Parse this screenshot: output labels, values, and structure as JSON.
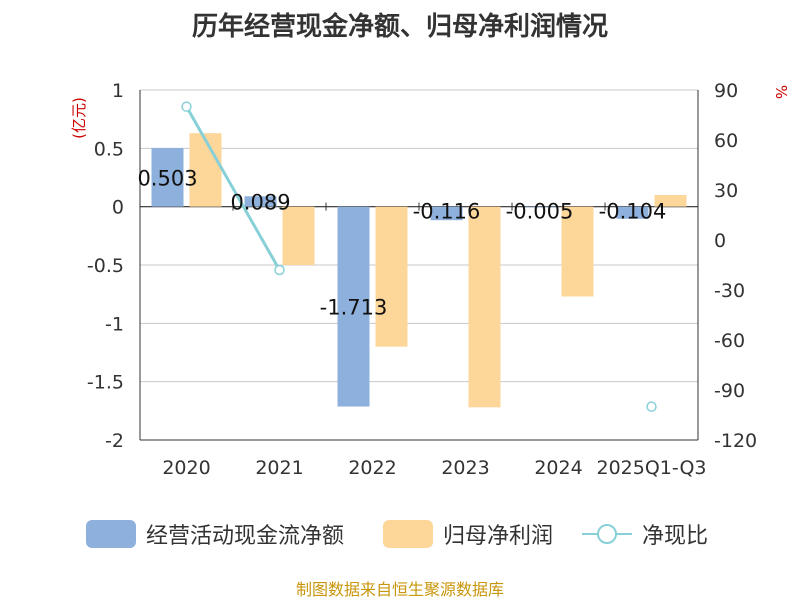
{
  "chart_data": {
    "type": "bar",
    "title": "历年经营现金净额、归母净利润情况",
    "categories": [
      "2020",
      "2021",
      "2022",
      "2023",
      "2024",
      "2025Q1-Q3"
    ],
    "series": [
      {
        "name": "经营活动现金流净额",
        "axis": "left",
        "type": "bar",
        "color": "#8eb0dc",
        "values": [
          0.503,
          0.089,
          -1.713,
          -0.116,
          -0.005,
          -0.104
        ]
      },
      {
        "name": "归母净利润",
        "axis": "left",
        "type": "bar",
        "color": "#fdd69a",
        "values": [
          0.63,
          -0.5,
          -1.2,
          -1.72,
          -0.77,
          0.1
        ]
      },
      {
        "name": "净现比",
        "axis": "right",
        "type": "line",
        "color": "#88d0d8",
        "values": [
          80,
          -18,
          null,
          null,
          null,
          -100
        ]
      }
    ],
    "data_labels": [
      "0.503",
      "0.089",
      "-1.713",
      "-0.116",
      "-0.005",
      "-0.104"
    ],
    "y_left": {
      "unit": "(亿元)",
      "min": -2,
      "max": 1,
      "ticks": [
        "1",
        "0.5",
        "0",
        "-0.5",
        "-1",
        "-1.5",
        "-2"
      ]
    },
    "y_right": {
      "unit": "%",
      "min": -120,
      "max": 90,
      "ticks": [
        "90",
        "60",
        "30",
        "0",
        "-30",
        "-60",
        "-90",
        "-120"
      ]
    },
    "legend_position": "bottom",
    "grid": true
  },
  "source": "制图数据来自恒生聚源数据库"
}
